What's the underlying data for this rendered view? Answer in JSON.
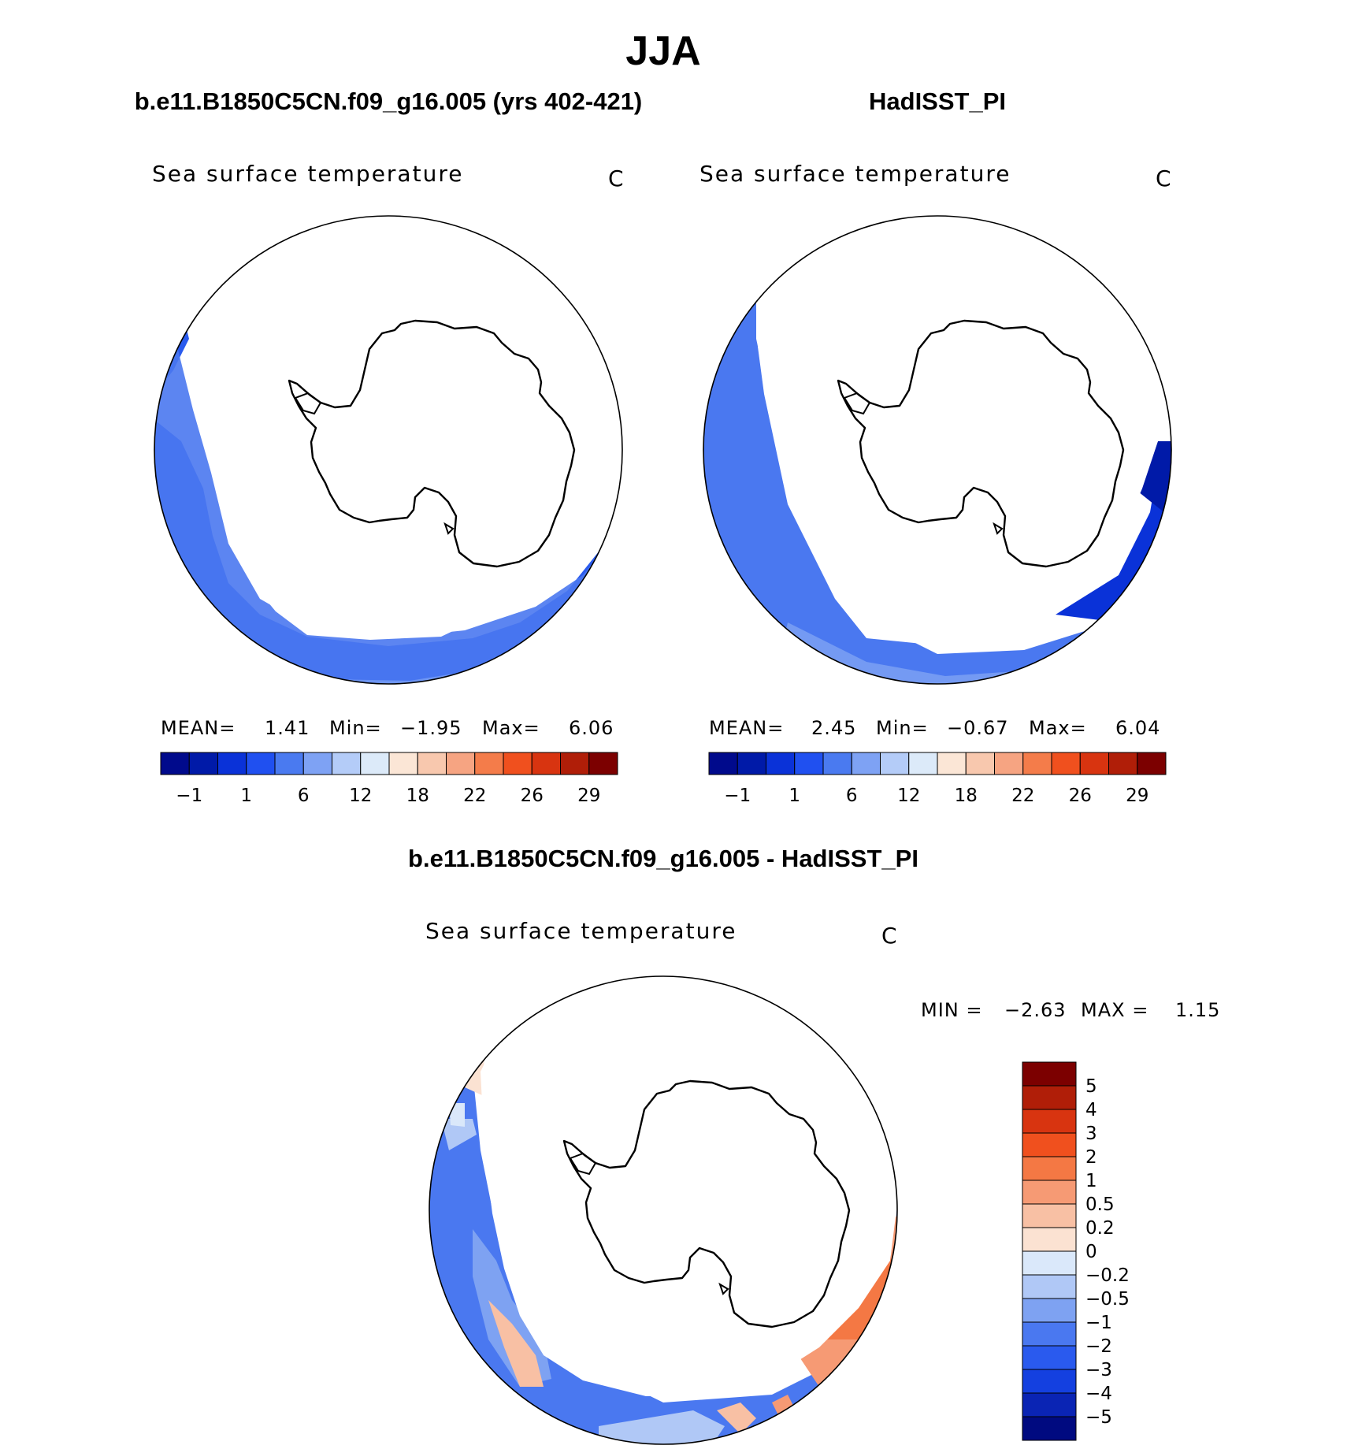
{
  "figure": {
    "title": "JJA",
    "panels": [
      {
        "header": "b.e11.B1850C5CN.f09_g16.005 (yrs 402-421)",
        "variable": "Sea surface temperature",
        "units": "C",
        "stats": {
          "mean_label": "MEAN=",
          "mean": "1.41",
          "min_label": "Min=",
          "min": "−1.95",
          "max_label": "Max=",
          "max": "6.06"
        }
      },
      {
        "header": "HadISST_PI",
        "variable": "Sea surface temperature",
        "units": "C",
        "stats": {
          "mean_label": "MEAN=",
          "mean": "2.45",
          "min_label": "Min=",
          "min": "−0.67",
          "max_label": "Max=",
          "max": "6.04"
        }
      }
    ],
    "difference": {
      "header": "b.e11.B1850C5CN.f09_g16.005 - HadISST_PI",
      "variable": "Sea surface temperature",
      "units": "C",
      "min_label": "MIN =",
      "min": "−2.63",
      "max_label": "MAX =",
      "max": "1.15"
    }
  },
  "chart_data": {
    "type": "map",
    "projection": "south-polar-stereographic",
    "field_colorbar": {
      "orientation": "horizontal",
      "colors": [
        "#000a8c",
        "#001aa8",
        "#0a32d8",
        "#2050f0",
        "#4a7af0",
        "#7ea2f4",
        "#b4ccf8",
        "#dceaf9",
        "#fbe6d6",
        "#f8c8ae",
        "#f6a482",
        "#f47c4a",
        "#f0501e",
        "#d83410",
        "#b01e08",
        "#7c0000"
      ],
      "tick_labels": [
        "−1",
        "1",
        "6",
        "12",
        "18",
        "22",
        "26",
        "29"
      ]
    },
    "difference_colorbar": {
      "orientation": "vertical",
      "colors": [
        "#000a80",
        "#0a24b4",
        "#1440e0",
        "#2a5aee",
        "#4a78f0",
        "#7ea2f2",
        "#b0c8f6",
        "#dae8fa",
        "#fbe2d2",
        "#f8c0a4",
        "#f69a74",
        "#f47844",
        "#f0501e",
        "#d83410",
        "#b01e08",
        "#7c0000"
      ],
      "tick_labels": [
        "−5",
        "−4",
        "−3",
        "−2",
        "−1",
        "−0.5",
        "−0.2",
        "0",
        "0.2",
        "0.5",
        "1",
        "2",
        "3",
        "4",
        "5"
      ]
    },
    "series": [
      {
        "name": "b.e11.B1850C5CN.f09_g16.005 (yrs 402-421)",
        "mean": 1.41,
        "min": -1.95,
        "max": 6.06
      },
      {
        "name": "HadISST_PI",
        "mean": 2.45,
        "min": -0.67,
        "max": 6.04
      },
      {
        "name": "difference",
        "min": -2.63,
        "max": 1.15
      }
    ]
  }
}
